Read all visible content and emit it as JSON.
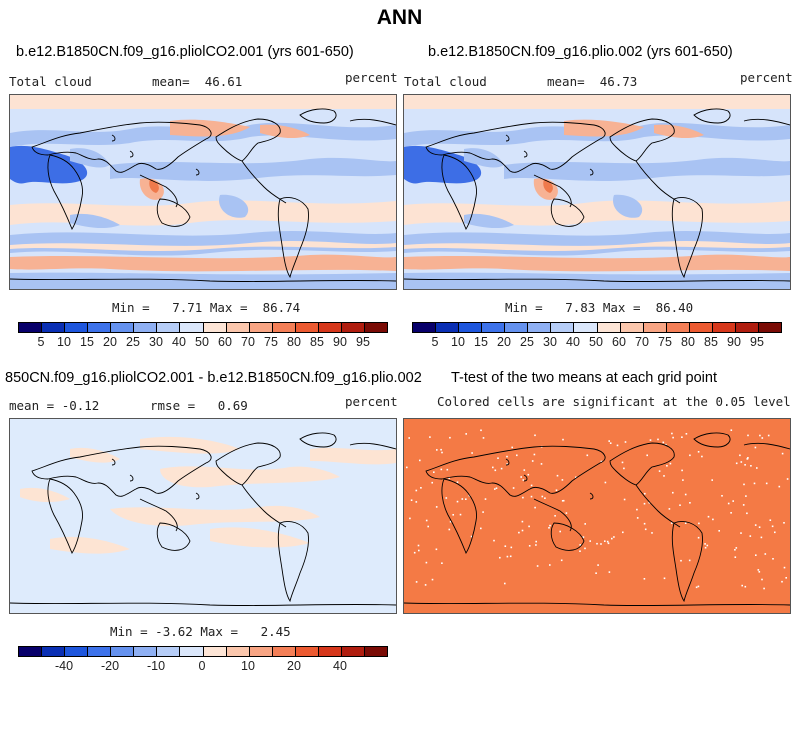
{
  "figure_title": "ANN",
  "panel1": {
    "title": "b.e12.B1850CN.f09_g16.pliolCO2.001 (yrs 601-650)",
    "variable": "Total cloud",
    "mean_label": "mean=",
    "mean_value": "46.61",
    "units": "percent",
    "min_label": "Min =",
    "min_value": "7.71",
    "max_label": "Max =",
    "max_value": "86.74"
  },
  "panel2": {
    "title": "b.e12.B1850CN.f09_g16.plio.002 (yrs 601-650)",
    "variable": "Total cloud",
    "mean_label": "mean=",
    "mean_value": "46.73",
    "units": "percent",
    "min_label": "Min =",
    "min_value": "7.83",
    "max_label": "Max =",
    "max_value": "86.40"
  },
  "panel3": {
    "title": "850CN.f09_g16.pliolCO2.001 - b.e12.B1850CN.f09_g16.plio.002",
    "mean_label": "mean =",
    "mean_value": "-0.12",
    "rmse_label": "rmse =",
    "rmse_value": "0.69",
    "units": "percent",
    "min_label": "Min =",
    "min_value": "-3.62",
    "max_label": "Max =",
    "max_value": "2.45"
  },
  "panel4": {
    "title": "T-test of the two means at each grid point",
    "subtitle": "Colored cells are significant at the 0.05 level"
  },
  "colorbar_abs": {
    "colors": [
      "#08006b",
      "#0a2fb4",
      "#1e56dd",
      "#3d72ea",
      "#6592ef",
      "#8fb0f3",
      "#b6cdf7",
      "#dbe7fb",
      "#fde5d6",
      "#fbc7ad",
      "#f8a584",
      "#f47f57",
      "#ec5a31",
      "#d6371b",
      "#b01d0f",
      "#7a0b05"
    ],
    "tick_labels": [
      "5",
      "10",
      "15",
      "20",
      "25",
      "30",
      "40",
      "50",
      "60",
      "70",
      "75",
      "80",
      "85",
      "90",
      "95"
    ]
  },
  "colorbar_diff": {
    "colors": [
      "#08006b",
      "#0a2fb4",
      "#1e56dd",
      "#3d72ea",
      "#6592ef",
      "#8fb0f3",
      "#b6cdf7",
      "#dbe7fb",
      "#fde5d6",
      "#fbc7ad",
      "#f8a584",
      "#f47f57",
      "#ec5a31",
      "#d6371b",
      "#b01d0f",
      "#7a0b05"
    ],
    "tick_labels": [
      "-40",
      "-20",
      "-10",
      "0",
      "10",
      "20",
      "40"
    ]
  },
  "map_colors": {
    "background_light_blue": "#d6e4fb",
    "mid_blue": "#a9c3f3",
    "deep_blue": "#3d6ee6",
    "light_salmon": "#fde3d3",
    "salmon": "#f7b294",
    "red_orange": "#ef7a4c",
    "diff_background": "#deebfc",
    "diff_positive": "#fde4d3",
    "ttest_fill": "#f47a45"
  }
}
